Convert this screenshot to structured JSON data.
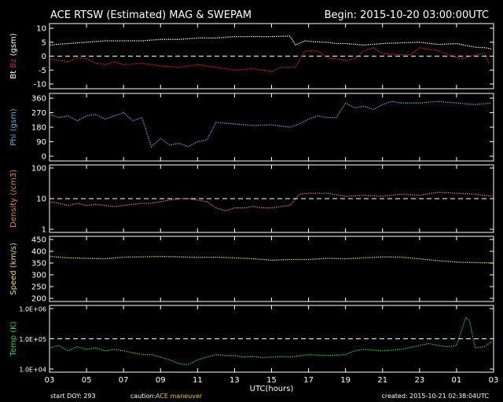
{
  "header": {
    "title": "ACE RTSW (Estimated) MAG & SWEPAM",
    "begin": "Begin: 2015-10-20 03:00:00UTC"
  },
  "footer": {
    "start_doy": "start DOY: 293",
    "caution_label": "caution:",
    "caution_text": "ACE maneuver",
    "created": "created: 2015-10-21 02:38:04UTC"
  },
  "colors": {
    "background": "#000000",
    "bt": "#ffffff",
    "bz": "#e02020",
    "phi": "#5ab4e0",
    "density": "#e08a3a",
    "speed": "#e6e070",
    "temp": "#3fd23f",
    "caution": "#e6d000"
  },
  "chart_data": {
    "type": "line",
    "xlabel": "UTC(hours)",
    "x_ticks": [
      "03",
      "05",
      "07",
      "09",
      "11",
      "13",
      "15",
      "17",
      "19",
      "21",
      "23",
      "01",
      "03"
    ],
    "panels": [
      {
        "id": "mag",
        "ylabel_parts": [
          {
            "text": "Bt",
            "color": "#ffffff"
          },
          {
            "text": " ",
            "color": "#ffffff"
          },
          {
            "text": "Bz",
            "color": "#e02020"
          },
          {
            "text": " (gsm)",
            "color": "#ffffff"
          }
        ],
        "yscale": "linear",
        "ylim": [
          -10,
          10
        ],
        "yticks": [
          10,
          5,
          0,
          -5,
          -10
        ],
        "ytick_labels": [
          "10",
          "5",
          "0",
          "-5",
          "-10"
        ],
        "reference_lines": [
          0
        ],
        "series": [
          {
            "name": "Bt",
            "color": "#ffffff",
            "x": [
              0,
              1,
              2,
              3,
              4,
              5,
              6,
              7,
              8,
              9,
              10,
              11,
              12,
              13,
              13.3,
              13.8,
              14.2,
              15,
              15.5,
              16,
              17,
              18,
              19,
              20,
              21,
              22,
              23,
              23.6,
              23.9
            ],
            "y": [
              4,
              4.5,
              5,
              5.5,
              5.5,
              5.5,
              6,
              6,
              6.5,
              6.5,
              7,
              7,
              7,
              7.2,
              4,
              5.5,
              5.2,
              5,
              4.5,
              4.5,
              4,
              4.5,
              4.8,
              5,
              4.2,
              4.5,
              3.2,
              3,
              2.5
            ]
          },
          {
            "name": "Bz",
            "color": "#e02020",
            "x": [
              0,
              0.5,
              1,
              1.5,
              2,
              2.5,
              3,
              3.5,
              4,
              5,
              6,
              7,
              8,
              9,
              10,
              11,
              12,
              12.5,
              13,
              13.3,
              13.8,
              14.2,
              14.6,
              15,
              15.5,
              16,
              16.5,
              17,
              17.5,
              18,
              19,
              19.5,
              20,
              21,
              22,
              22.3,
              23,
              23.5,
              23.8
            ],
            "y": [
              -1,
              -1.5,
              -2,
              -0.5,
              -1,
              -2.5,
              -3,
              -2,
              -3,
              -2.5,
              -3.5,
              -4,
              -3,
              -4,
              -5,
              -4.5,
              -5.5,
              -4,
              -4,
              -3.8,
              1.8,
              2,
              1.5,
              -0.5,
              -1,
              -1.5,
              -1,
              2,
              3,
              1,
              0.5,
              0.5,
              3,
              2,
              -0.5,
              -1,
              0.5,
              1,
              -3
            ]
          }
        ]
      },
      {
        "id": "phi",
        "ylabel_parts": [
          {
            "text": "Phi (gsm)",
            "color": "#5ab4e0"
          }
        ],
        "yscale": "linear",
        "ylim": [
          0,
          360
        ],
        "yticks": [
          360,
          270,
          180,
          90,
          0
        ],
        "ytick_labels": [
          "360",
          "270",
          "180",
          "90",
          "0"
        ],
        "reference_lines": [],
        "series": [
          {
            "name": "Phi",
            "color": "#5ab4e0",
            "x": [
              0,
              0.5,
              1,
              1.5,
              2,
              2.5,
              3,
              3.5,
              4,
              4.5,
              5,
              5.5,
              6,
              6.5,
              7,
              7.5,
              8,
              8.5,
              9,
              10,
              11,
              12,
              13,
              13.5,
              14,
              14.5,
              15,
              15.5,
              16,
              16.5,
              17,
              17.5,
              18,
              18.5,
              19,
              20,
              21,
              22,
              23,
              23.9
            ],
            "y": [
              260,
              240,
              250,
              220,
              250,
              260,
              230,
              250,
              270,
              220,
              240,
              60,
              110,
              70,
              80,
              60,
              90,
              100,
              210,
              200,
              190,
              195,
              180,
              200,
              230,
              250,
              240,
              240,
              330,
              300,
              310,
              290,
              320,
              340,
              330,
              330,
              340,
              330,
              320,
              330
            ]
          }
        ]
      },
      {
        "id": "density",
        "ylabel_parts": [
          {
            "text": "Density (/cm3)",
            "color": "#e08a3a"
          }
        ],
        "yscale": "log",
        "ylim": [
          1,
          100
        ],
        "yticks": [
          100,
          10,
          1
        ],
        "ytick_labels": [
          "100",
          "10",
          "1"
        ],
        "reference_lines": [
          10
        ],
        "series": [
          {
            "name": "Density",
            "color": "#e08a3a",
            "x": [
              0,
              0.5,
              1,
              1.5,
              2,
              2.5,
              3,
              3.5,
              4,
              4.5,
              5,
              5.5,
              6,
              6.5,
              7,
              7.5,
              8,
              8.5,
              9,
              9.5,
              10,
              10.5,
              11,
              11.5,
              12,
              12.5,
              13,
              13.5,
              14,
              15,
              16,
              17,
              18,
              19,
              20,
              21,
              22,
              23,
              23.9
            ],
            "y": [
              8,
              7,
              6,
              7,
              6,
              6.5,
              6,
              5.5,
              6,
              6.5,
              7,
              7,
              8,
              9,
              10,
              10,
              9,
              8,
              5,
              4,
              5,
              5,
              5.5,
              5,
              5,
              5.5,
              6,
              14,
              15,
              15,
              12,
              13,
              12,
              14,
              13,
              16,
              15,
              14,
              12
            ]
          }
        ]
      },
      {
        "id": "speed",
        "ylabel_parts": [
          {
            "text": "Speed (km/s)",
            "color": "#e6e070"
          }
        ],
        "yscale": "linear",
        "ylim": [
          200,
          450
        ],
        "yticks": [
          450,
          400,
          350,
          300,
          250,
          200
        ],
        "ytick_labels": [
          "450",
          "400",
          "350",
          "300",
          "250",
          "200"
        ],
        "reference_lines": [],
        "series": [
          {
            "name": "Speed",
            "color": "#e6e070",
            "x": [
              0,
              1,
              2,
              3,
              4,
              5,
              6,
              7,
              8,
              9,
              10,
              11,
              12,
              13,
              14,
              15,
              16,
              17,
              18,
              19,
              20,
              21,
              22,
              23,
              23.9
            ],
            "y": [
              378,
              372,
              370,
              368,
              375,
              376,
              378,
              376,
              374,
              375,
              372,
              368,
              362,
              365,
              365,
              370,
              368,
              372,
              376,
              375,
              368,
              360,
              354,
              352,
              350
            ]
          }
        ]
      },
      {
        "id": "temp",
        "ylabel_parts": [
          {
            "text": "Temp (K)",
            "color": "#3fd23f"
          }
        ],
        "yscale": "log",
        "ylim": [
          10000,
          1000000
        ],
        "yticks": [
          1000000,
          100000,
          10000
        ],
        "ytick_labels": [
          "1.0E+06",
          "1.0E+05",
          "1.0E+04"
        ],
        "reference_lines": [
          100000
        ],
        "series": [
          {
            "name": "Temp",
            "color": "#3fd23f",
            "x": [
              0,
              0.5,
              1,
              1.5,
              2,
              2.5,
              3,
              3.5,
              4,
              4.5,
              5,
              5.5,
              6,
              6.5,
              7,
              7.5,
              8,
              8.5,
              9,
              9.5,
              10,
              10.5,
              11,
              11.5,
              12,
              12.5,
              13,
              14,
              15,
              16,
              16.5,
              17,
              18,
              19,
              20,
              20.5,
              21,
              21.5,
              22,
              22.5,
              22.7,
              23,
              23.5,
              23.9
            ],
            "y": [
              50000,
              60000,
              40000,
              55000,
              45000,
              50000,
              40000,
              45000,
              40000,
              35000,
              30000,
              30000,
              25000,
              20000,
              15000,
              14000,
              20000,
              25000,
              30000,
              28000,
              28000,
              25000,
              26000,
              24000,
              25000,
              26000,
              25000,
              30000,
              28000,
              30000,
              40000,
              45000,
              40000,
              45000,
              60000,
              70000,
              60000,
              55000,
              60000,
              500000,
              400000,
              50000,
              55000,
              80000
            ]
          }
        ]
      }
    ]
  }
}
